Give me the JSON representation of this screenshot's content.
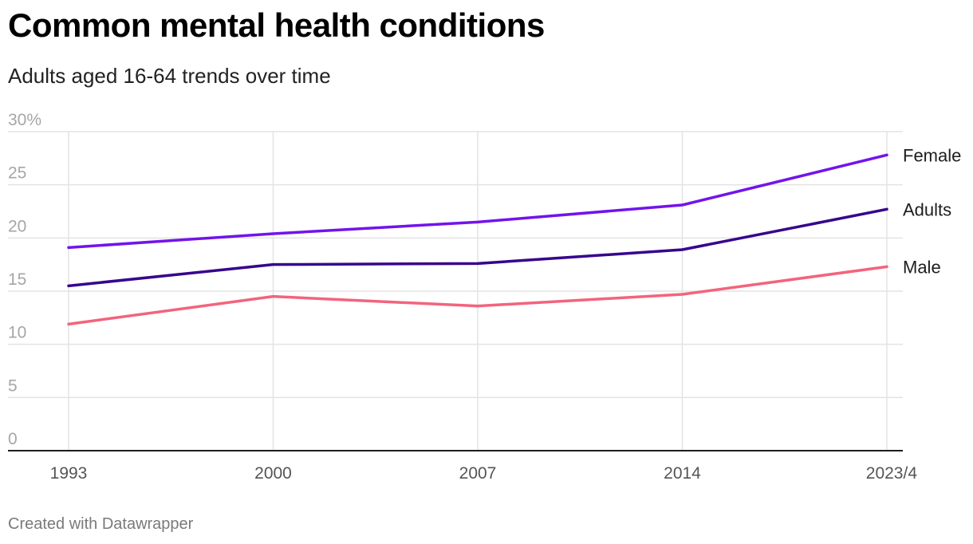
{
  "header": {
    "title": "Common mental health conditions",
    "subtitle": "Adults aged 16-64 trends over time"
  },
  "footer": {
    "credit": "Created with Datawrapper"
  },
  "chart_data": {
    "type": "line",
    "title": "Common mental health conditions",
    "subtitle": "Adults aged 16-64 trends over time",
    "xlabel": "",
    "ylabel": "",
    "categories": [
      "1993",
      "2000",
      "2007",
      "2014",
      "2023/4"
    ],
    "y_ticks": [
      "0",
      "5",
      "10",
      "15",
      "20",
      "25",
      "30%"
    ],
    "ylim": [
      0,
      30
    ],
    "grid": true,
    "legend": "direct labels at line ends (right)",
    "series": [
      {
        "name": "Female",
        "color": "#7214eb",
        "values": [
          19.1,
          20.4,
          21.5,
          23.1,
          27.8
        ]
      },
      {
        "name": "Adults",
        "color": "#37058c",
        "values": [
          15.5,
          17.5,
          17.6,
          18.9,
          22.7
        ]
      },
      {
        "name": "Male",
        "color": "#f2647d",
        "values": [
          11.9,
          14.5,
          13.6,
          14.7,
          17.3
        ]
      }
    ]
  }
}
